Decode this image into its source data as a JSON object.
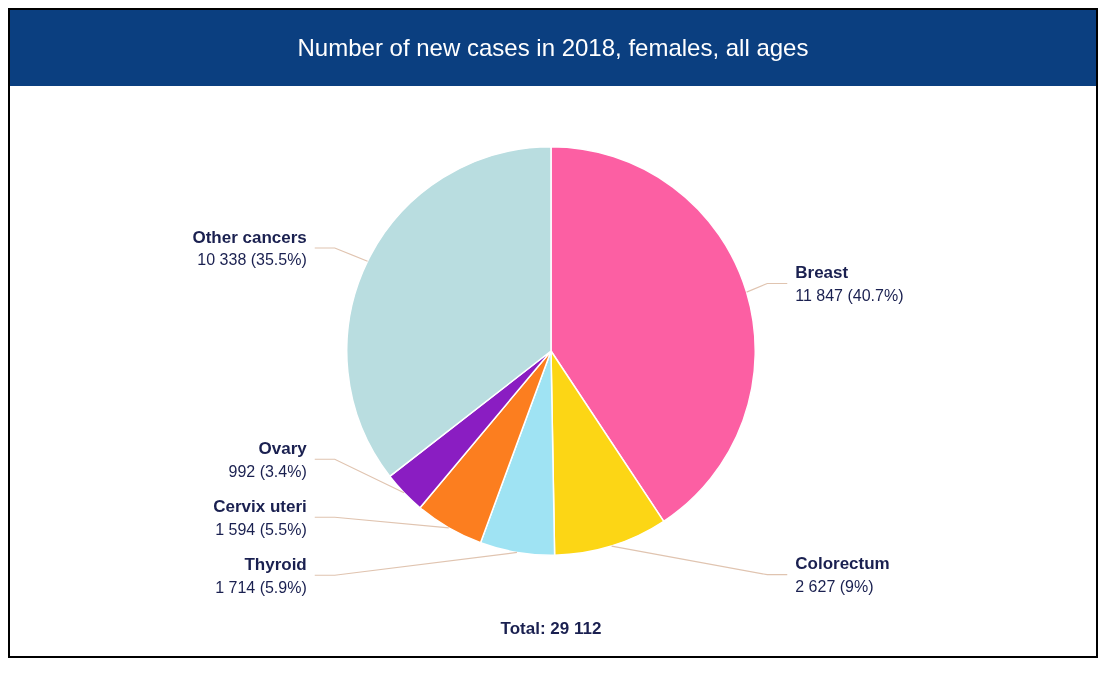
{
  "chart_data": {
    "type": "pie",
    "title": "Number of new cases in 2018, females, all ages",
    "categories": [
      "Breast",
      "Colorectum",
      "Thyroid",
      "Cervix uteri",
      "Ovary",
      "Other cancers"
    ],
    "values": [
      11847,
      2627,
      1714,
      1594,
      992,
      10338
    ],
    "value_labels": [
      "11 847 (40.7%)",
      "2 627 (9%)",
      "1 714 (5.9%)",
      "1 594 (5.5%)",
      "992 (3.4%)",
      "10 338 (35.5%)"
    ],
    "colors": [
      "#fc5fa3",
      "#fcd615",
      "#9fe3f3",
      "#fc7e1f",
      "#8a1dc2",
      "#b9dde0"
    ],
    "annotations": [
      "Total: 29 112"
    ]
  }
}
